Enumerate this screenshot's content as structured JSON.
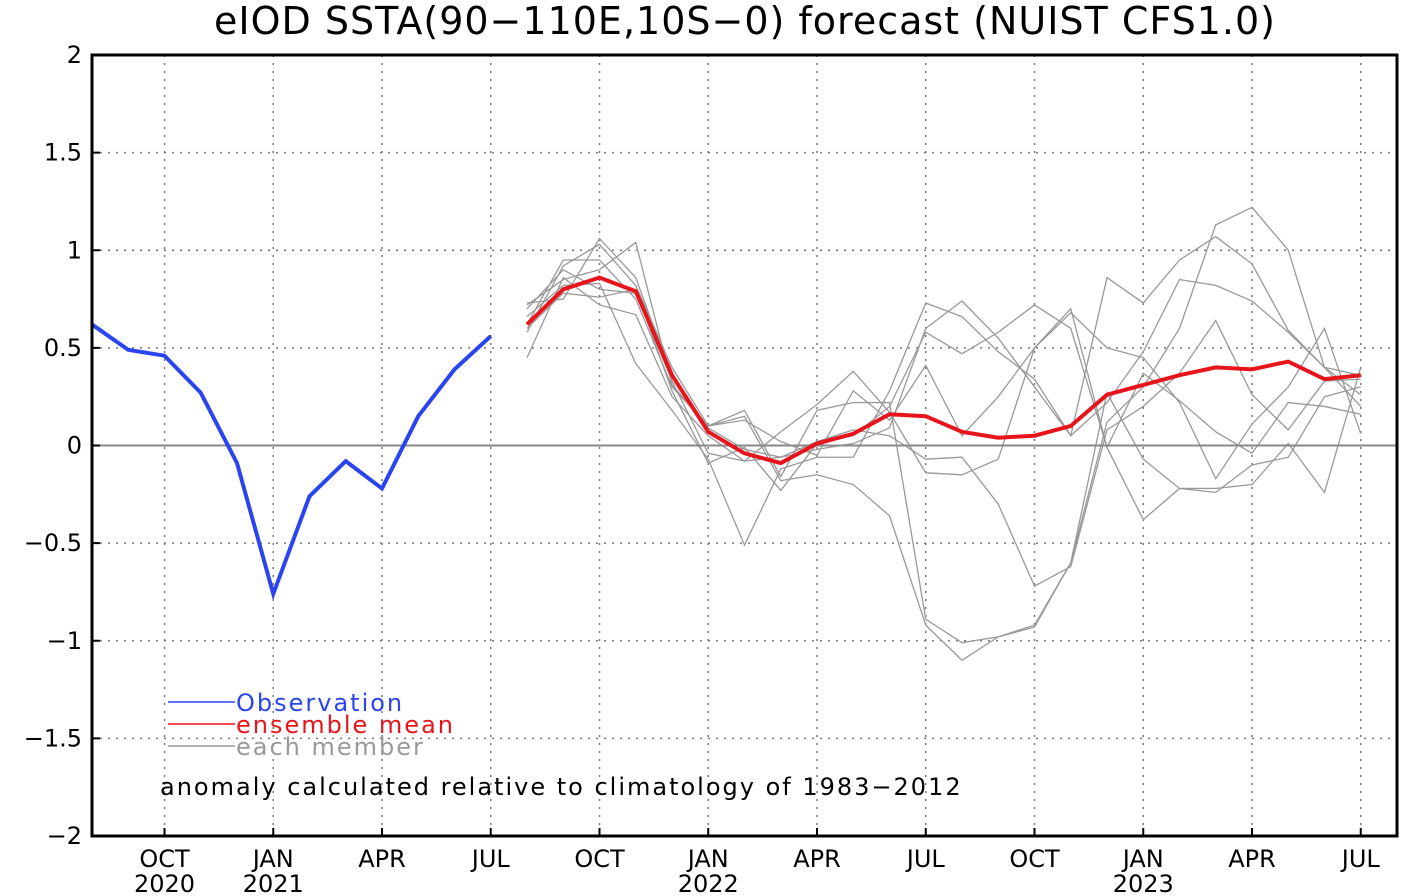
{
  "chart_data": {
    "type": "line",
    "title": "eIOD SSTA(90-110E,10S-0) forecast (NUIST CFS1.0)",
    "ylim": [
      -2,
      2
    ],
    "yticks": [
      "2",
      "1.5",
      "1",
      "0.5",
      "0",
      "-0.5",
      "-1",
      "-1.5",
      "-2"
    ],
    "xlim": [
      0,
      40
    ],
    "grid": true,
    "xticks": [
      {
        "x": 2,
        "month": "OCT",
        "year": "2020"
      },
      {
        "x": 5,
        "month": "JAN",
        "year": "2021"
      },
      {
        "x": 8,
        "month": "APR",
        "year": ""
      },
      {
        "x": 11,
        "month": "JUL",
        "year": ""
      },
      {
        "x": 14,
        "month": "OCT",
        "year": ""
      },
      {
        "x": 17,
        "month": "JAN",
        "year": "2022"
      },
      {
        "x": 20,
        "month": "APR",
        "year": ""
      },
      {
        "x": 23,
        "month": "JUL",
        "year": ""
      },
      {
        "x": 26,
        "month": "OCT",
        "year": ""
      },
      {
        "x": 29,
        "month": "JAN",
        "year": "2023"
      },
      {
        "x": 32,
        "month": "APR",
        "year": ""
      },
      {
        "x": 35,
        "month": "JUL",
        "year": ""
      }
    ],
    "series": [
      {
        "name": "Observation",
        "color": "#2a44f0",
        "x": [
          0,
          1,
          2,
          3,
          4,
          5,
          6,
          7,
          8,
          9,
          10,
          11
        ],
        "values": [
          0.62,
          0.49,
          0.46,
          0.27,
          -0.09,
          -0.76,
          -0.26,
          -0.08,
          -0.22,
          0.15,
          0.39,
          0.56
        ]
      },
      {
        "name": "ensemble mean",
        "color": "#e8141b",
        "x": [
          12,
          13,
          14,
          15,
          16,
          17,
          18,
          19,
          20,
          21,
          22,
          23,
          24,
          25,
          26,
          27,
          28,
          29,
          30,
          31,
          32,
          33,
          34,
          35
        ],
        "values": [
          0.62,
          0.8,
          0.86,
          0.79,
          0.36,
          0.07,
          -0.04,
          -0.09,
          0.01,
          0.06,
          0.16,
          0.15,
          0.07,
          0.04,
          0.05,
          0.1,
          0.26,
          0.31,
          0.36,
          0.4,
          0.39,
          0.43,
          0.34,
          0.36
        ]
      }
    ],
    "members": {
      "name": "each member",
      "color": "#999999",
      "x": [
        12,
        13,
        14,
        15,
        16,
        17,
        18,
        19,
        20,
        21,
        22,
        23,
        24,
        25,
        26,
        27,
        28,
        29,
        30,
        31,
        32,
        33,
        34,
        35
      ],
      "lines": [
        [
          0.73,
          0.75,
          1.06,
          0.86,
          0.35,
          0.09,
          -0.02,
          -0.06,
          -0.02,
          0.01,
          0.09,
          0.6,
          0.74,
          0.55,
          0.3,
          0.05,
          0.22,
          0.48,
          0.85,
          0.82,
          0.74,
          0.58,
          0.4,
          0.36
        ],
        [
          0.58,
          0.92,
          1.03,
          0.82,
          0.4,
          0.1,
          0.15,
          -0.18,
          -0.15,
          -0.2,
          -0.36,
          -0.92,
          -1.1,
          -0.98,
          -0.93,
          -0.6,
          0.12,
          0.3,
          0.6,
          1.13,
          1.22,
          1.0,
          0.4,
          0.2
        ],
        [
          0.45,
          0.86,
          0.72,
          0.67,
          0.25,
          0.05,
          -0.08,
          0.07,
          0.21,
          0.38,
          0.17,
          -0.14,
          -0.15,
          -0.07,
          0.5,
          0.7,
          -0.01,
          0.37,
          0.23,
          0.07,
          -0.04,
          0.22,
          0.2,
          0.16
        ],
        [
          0.66,
          0.82,
          0.83,
          0.42,
          0.18,
          -0.07,
          -0.51,
          -0.12,
          -0.06,
          -0.06,
          0.28,
          0.73,
          0.66,
          0.48,
          0.34,
          0.05,
          0.86,
          0.73,
          0.95,
          1.07,
          0.93,
          0.59,
          0.4,
          0.26
        ],
        [
          0.6,
          0.78,
          0.76,
          0.8,
          0.28,
          -0.09,
          -0.01,
          -0.23,
          0.01,
          0.05,
          0.2,
          0.58,
          0.47,
          0.58,
          0.72,
          0.6,
          -0.01,
          -0.38,
          -0.22,
          -0.24,
          -0.1,
          -0.06,
          0.25,
          0.3
        ],
        [
          0.62,
          0.95,
          0.95,
          0.75,
          0.3,
          0.1,
          0.13,
          0.02,
          -0.05,
          0.28,
          0.13,
          0.41,
          0.05,
          0.25,
          0.5,
          0.68,
          0.5,
          0.45,
          0.22,
          -0.17,
          0.11,
          0.3,
          0.6,
          0.06
        ],
        [
          0.7,
          0.9,
          0.8,
          0.78,
          0.33,
          -0.04,
          -0.08,
          -0.06,
          0.02,
          0.08,
          0.05,
          -0.07,
          -0.06,
          -0.3,
          -0.72,
          -0.62,
          0.08,
          0.2,
          0.37,
          0.64,
          0.26,
          0.08,
          0.33,
          0.34
        ],
        [
          0.72,
          0.85,
          0.9,
          1.04,
          0.31,
          0.1,
          0.18,
          -0.16,
          0.18,
          0.22,
          0.22,
          -0.89,
          -1.01,
          -0.98,
          -0.92,
          -0.6,
          0.27,
          -0.07,
          -0.22,
          -0.22,
          -0.2,
          0.01,
          -0.24,
          0.4
        ]
      ]
    },
    "legend": {
      "position": "lower-left",
      "entries": [
        {
          "label": "Observation",
          "color": "#2a44f0"
        },
        {
          "label": "ensemble mean",
          "color": "#e8141b"
        },
        {
          "label": "each member",
          "color": "#999999"
        }
      ]
    },
    "annotation": "anomaly calculated relative to climatology of 1983-2012"
  }
}
